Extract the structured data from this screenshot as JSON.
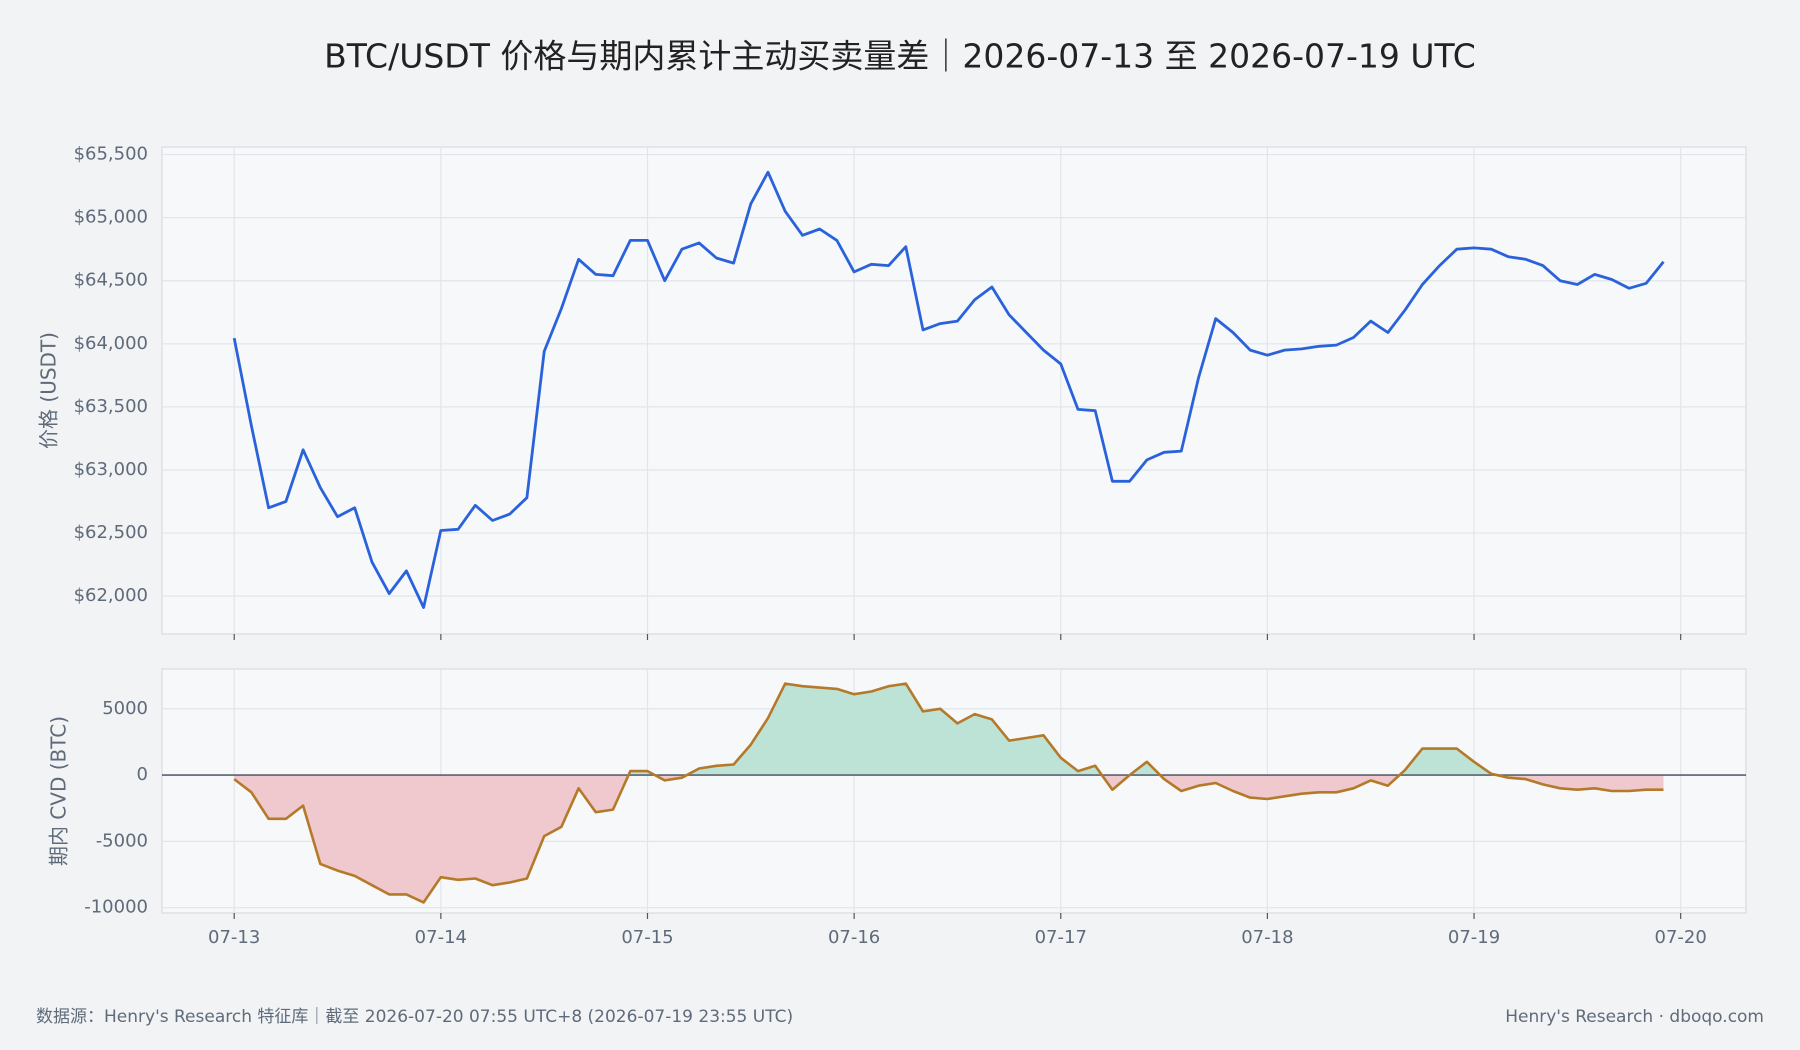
{
  "chart_data": [
    {
      "type": "line",
      "title": "BTC/USDT 价格与期内累计主动买卖量差｜2026-07-13 至 2026-07-19 UTC",
      "ylabel": "价格 (USDT)",
      "color": "#2a62db",
      "values": [
        64045,
        63350,
        62700,
        62750,
        63160,
        62860,
        62630,
        62700,
        62270,
        62020,
        62200,
        61910,
        62520,
        62530,
        62720,
        62600,
        62650,
        62780,
        63940,
        64280,
        64670,
        64550,
        64540,
        64820,
        64820,
        64500,
        64750,
        64800,
        64680,
        64640,
        65110,
        65360,
        65050,
        64860,
        64910,
        64820,
        64570,
        64630,
        64620,
        64770,
        64110,
        64160,
        64180,
        64350,
        64450,
        64230,
        64090,
        63950,
        63840,
        63480,
        63470,
        62910,
        62910,
        63080,
        63140,
        63150,
        63730,
        64200,
        64090,
        63950,
        63910,
        63950,
        63960,
        63980,
        63990,
        64050,
        64180,
        64090,
        64270,
        64470,
        64620,
        64750,
        64760,
        64750,
        64690,
        64670,
        64620,
        64500,
        64470,
        64550,
        64510,
        64440,
        64480,
        64650,
        null
      ],
      "ylim": [
        61700,
        65560
      ],
      "yticks": [
        {
          "value": 62000,
          "label": "$62,000"
        },
        {
          "value": 62500,
          "label": "$62,500"
        },
        {
          "value": 63000,
          "label": "$63,000"
        },
        {
          "value": 63500,
          "label": "$63,500"
        },
        {
          "value": 64000,
          "label": "$64,000"
        },
        {
          "value": 64500,
          "label": "$64,500"
        },
        {
          "value": 65000,
          "label": "$65,000"
        },
        {
          "value": 65500,
          "label": "$65,500"
        }
      ],
      "grid": true
    },
    {
      "type": "area",
      "ylabel": "期内 CVD (BTC)",
      "color": "#b5792a",
      "fill_positive": "#bde3d6",
      "fill_negative": "#efc9cd",
      "x": [
        "07-13",
        null,
        null,
        null,
        null,
        null,
        null,
        null,
        null,
        null,
        null,
        null,
        "07-14",
        null,
        null,
        null,
        null,
        null,
        null,
        null,
        null,
        null,
        null,
        null,
        "07-15",
        null,
        null,
        null,
        null,
        null,
        null,
        null,
        null,
        null,
        null,
        null,
        "07-16",
        null,
        null,
        null,
        null,
        null,
        null,
        null,
        null,
        null,
        null,
        null,
        "07-17",
        null,
        null,
        null,
        null,
        null,
        null,
        null,
        null,
        null,
        null,
        null,
        "07-18",
        null,
        null,
        null,
        null,
        null,
        null,
        null,
        null,
        null,
        null,
        null,
        "07-19",
        null,
        null,
        null,
        null,
        null,
        null,
        null,
        null,
        null,
        null,
        null,
        "07-20"
      ],
      "values": [
        -300,
        -1300,
        -3300,
        -3300,
        -2300,
        -6700,
        -7200,
        -7600,
        -8300,
        -9000,
        -9000,
        -9600,
        -7700,
        -7900,
        -7800,
        -8300,
        -8100,
        -7800,
        -4600,
        -3900,
        -1000,
        -2800,
        -2600,
        300,
        300,
        -400,
        -200,
        500,
        700,
        800,
        2300,
        4300,
        6900,
        6700,
        6600,
        6500,
        6100,
        6300,
        6700,
        6900,
        4800,
        5000,
        3900,
        4600,
        4200,
        2600,
        2800,
        3000,
        1300,
        300,
        700,
        -1100,
        0,
        1000,
        -300,
        -1200,
        -800,
        -600,
        -1200,
        -1700,
        -1800,
        -1600,
        -1400,
        -1300,
        -1300,
        -1000,
        -400,
        -800,
        400,
        2000,
        2000,
        2000,
        1000,
        100,
        -200,
        -300,
        -700,
        -1000,
        -1100,
        -1000,
        -1200,
        -1200,
        -1100,
        -1100,
        null
      ],
      "ylim": [
        -10400,
        8000
      ],
      "yticks": [
        -10000,
        -5000,
        0,
        5000
      ],
      "grid": true
    }
  ],
  "footer": {
    "source": "数据源：Henry's Research 特征库｜截至 2026-07-20 07:55 UTC+8 (2026-07-19 23:55 UTC)",
    "brand": "Henry's Research  ·  dboqo.com"
  }
}
